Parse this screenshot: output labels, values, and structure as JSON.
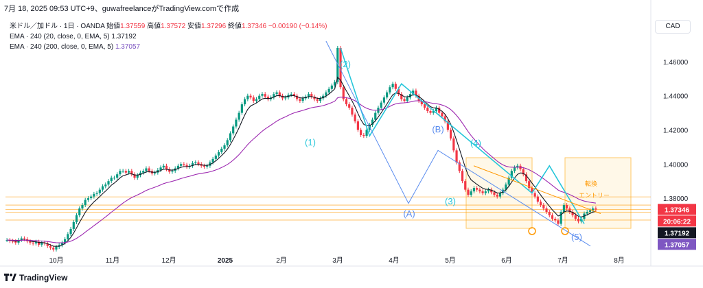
{
  "header": {
    "text": "7月 18, 2025 09:53 UTC+9、guwafreelanceがTradingView.comで作成"
  },
  "legend": {
    "symbol": "米ドル／加ドル · 1日 · OANDA",
    "open_label": "始値",
    "open": "1.37559",
    "high_label": "高値",
    "high": "1.37572",
    "low_label": "安値",
    "low": "1.37296",
    "close_label": "終値",
    "close": "1.37346",
    "change": "−0.00190 (−0.14%)",
    "ema1": "EMA · 240 (20, close, 0, EMA, 5)",
    "ema1_value": "1.37192",
    "ema2": "EMA · 240 (200, close, 0, EMA, 5)",
    "ema2_value": "1.37057"
  },
  "currency_button": "CAD",
  "brand": "TradingView",
  "colors": {
    "up": "#089981",
    "down": "#f23645",
    "ema20": "#131722",
    "ema200": "#9c27b0",
    "wave": "#26c6da",
    "corrective": "#5b8def",
    "orange": "#ff9800"
  },
  "chart_data": {
    "type": "candlestick",
    "y_ticks": [
      "1.46000",
      "1.44000",
      "1.42000",
      "1.40000",
      "1.38000"
    ],
    "ylim": [
      1.3455,
      1.476
    ],
    "x_ticks": [
      "10月",
      "11月",
      "12月",
      "2025",
      "2月",
      "3月",
      "4月",
      "5月",
      "6月",
      "7月",
      "8月"
    ],
    "price_badges": [
      {
        "label": "1.37346",
        "value": 1.37346,
        "color": "#f23645"
      },
      {
        "label": "20:06:22",
        "value": 1.37346,
        "color": "#f23645"
      },
      {
        "label": "1.37192",
        "value": 1.37192,
        "color": "#131722"
      },
      {
        "label": "1.37057",
        "value": 1.37057,
        "color": "#7e57c2"
      }
    ],
    "wave_labels": [
      {
        "text": "(1)",
        "color": "#26c6da"
      },
      {
        "text": "(2)",
        "color": "#26c6da"
      },
      {
        "text": "(3)",
        "color": "#26c6da"
      },
      {
        "text": "(4)",
        "color": "#26c6da"
      },
      {
        "text": "(5)",
        "color": "#5b8def"
      },
      {
        "text": "(A)",
        "color": "#5b8def"
      },
      {
        "text": "(B)",
        "color": "#5b8def"
      }
    ],
    "annotations": [
      "転換",
      "エントリー"
    ],
    "hlines": [
      1.3808,
      1.376,
      1.3734,
      1.3718,
      1.3672
    ],
    "close_series": [
      1.3555,
      1.355,
      1.3548,
      1.354,
      1.3556,
      1.3565,
      1.356,
      1.3548,
      1.354,
      1.3535,
      1.3545,
      1.3528,
      1.354,
      1.3535,
      1.352,
      1.351,
      1.35,
      1.3515,
      1.3525,
      1.354,
      1.356,
      1.359,
      1.362,
      1.366,
      1.37,
      1.374,
      1.376,
      1.379,
      1.38,
      1.381,
      1.3825,
      1.383,
      1.385,
      1.387,
      1.388,
      1.39,
      1.392,
      1.392,
      1.394,
      1.396,
      1.396,
      1.395,
      1.396,
      1.394,
      1.392,
      1.3935,
      1.395,
      1.396,
      1.3975,
      1.396,
      1.3945,
      1.395,
      1.3965,
      1.398,
      1.399,
      1.397,
      1.3955,
      1.396,
      1.3975,
      1.399,
      1.4,
      1.3995,
      1.3985,
      1.399,
      1.4005,
      1.401,
      1.4,
      1.399,
      1.3985,
      1.399,
      1.401,
      1.403,
      1.405,
      1.407,
      1.409,
      1.411,
      1.414,
      1.418,
      1.422,
      1.426,
      1.43,
      1.435,
      1.438,
      1.44,
      1.439,
      1.437,
      1.438,
      1.44,
      1.441,
      1.4395,
      1.438,
      1.439,
      1.441,
      1.442,
      1.44,
      1.4385,
      1.439,
      1.4405,
      1.441,
      1.44,
      1.438,
      1.437,
      1.4385,
      1.4395,
      1.441,
      1.4395,
      1.438,
      1.437,
      1.4385,
      1.44,
      1.442,
      1.444,
      1.446,
      1.448,
      1.468,
      1.445,
      1.438,
      1.435,
      1.433,
      1.429,
      1.425,
      1.42,
      1.417,
      1.4165,
      1.42,
      1.423,
      1.426,
      1.43,
      1.433,
      1.436,
      1.439,
      1.442,
      1.445,
      1.447,
      1.444,
      1.441,
      1.438,
      1.437,
      1.439,
      1.441,
      1.443,
      1.44,
      1.437,
      1.435,
      1.433,
      1.431,
      1.43,
      1.431,
      1.433,
      1.43,
      1.428,
      1.425,
      1.42,
      1.415,
      1.408,
      1.401,
      1.396,
      1.39,
      1.385,
      1.382,
      1.384,
      1.386,
      1.385,
      1.384,
      1.383,
      1.384,
      1.385,
      1.3835,
      1.382,
      1.381,
      1.383,
      1.385,
      1.388,
      1.392,
      1.396,
      1.398,
      1.399,
      1.397,
      1.394,
      1.39,
      1.386,
      1.383,
      1.381,
      1.378,
      1.376,
      1.374,
      1.372,
      1.37,
      1.368,
      1.367,
      1.365,
      1.372,
      1.376,
      1.374,
      1.372,
      1.37,
      1.368,
      1.3665,
      1.368,
      1.371,
      1.372,
      1.373,
      1.374,
      1.3734
    ]
  }
}
